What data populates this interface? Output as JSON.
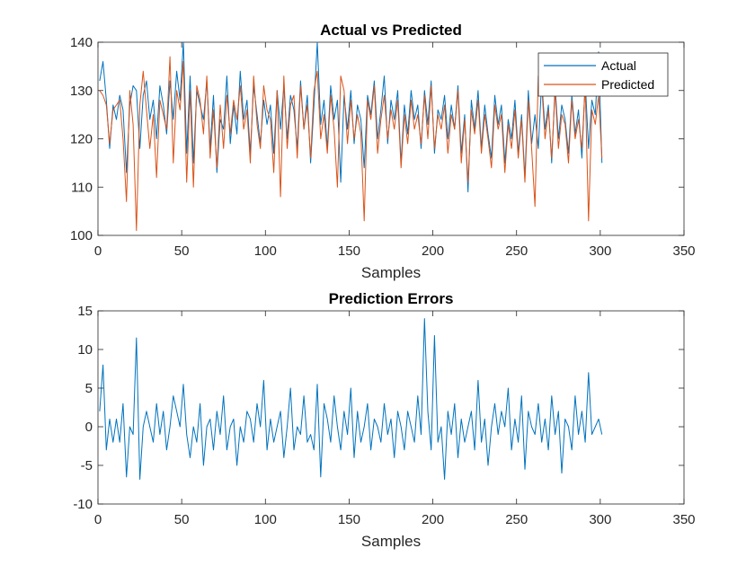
{
  "figure": {
    "background": "#ffffff",
    "axis_color": "#262626"
  },
  "chart_data": [
    {
      "type": "line",
      "title": "Actual vs Predicted",
      "xlabel": "Samples",
      "ylabel": "",
      "xlim": [
        0,
        350
      ],
      "ylim": [
        100,
        140
      ],
      "xticks": [
        0,
        50,
        100,
        150,
        200,
        250,
        300,
        350
      ],
      "yticks": [
        100,
        110,
        120,
        130,
        140
      ],
      "grid": false,
      "legend": "top-right",
      "series": [
        {
          "name": "Actual",
          "color": "#0072BD",
          "x": [
            1,
            3,
            5,
            7,
            9,
            11,
            13,
            15,
            17,
            19,
            21,
            23,
            25,
            27,
            29,
            31,
            33,
            35,
            37,
            39,
            41,
            43,
            45,
            47,
            49,
            51,
            53,
            55,
            57,
            59,
            61,
            63,
            65,
            67,
            69,
            71,
            73,
            75,
            77,
            79,
            81,
            83,
            85,
            87,
            89,
            91,
            93,
            95,
            97,
            99,
            101,
            103,
            105,
            107,
            109,
            111,
            113,
            115,
            117,
            119,
            121,
            123,
            125,
            127,
            129,
            131,
            133,
            135,
            137,
            139,
            141,
            143,
            145,
            147,
            149,
            151,
            153,
            155,
            157,
            159,
            161,
            163,
            165,
            167,
            169,
            171,
            173,
            175,
            177,
            179,
            181,
            183,
            185,
            187,
            189,
            191,
            193,
            195,
            197,
            199,
            201,
            203,
            205,
            207,
            209,
            211,
            213,
            215,
            217,
            219,
            221,
            223,
            225,
            227,
            229,
            231,
            233,
            235,
            237,
            239,
            241,
            243,
            245,
            247,
            249,
            251,
            253,
            255,
            257,
            259,
            261,
            263,
            265,
            267,
            269,
            271,
            273,
            275,
            277,
            279,
            281,
            283,
            285,
            287,
            289,
            291,
            293,
            295,
            297,
            299,
            301
          ],
          "values": [
            132,
            136,
            128,
            118,
            127,
            124,
            129,
            126,
            113,
            127,
            131,
            130,
            118,
            129,
            132,
            124,
            128,
            120,
            131,
            127,
            121,
            132,
            124,
            134,
            128,
            140,
            117,
            133,
            115,
            130,
            127,
            124,
            132,
            118,
            129,
            113,
            124,
            122,
            133,
            119,
            127,
            121,
            134,
            124,
            128,
            117,
            131,
            125,
            119,
            128,
            123,
            127,
            117,
            130,
            122,
            131,
            120,
            129,
            126,
            118,
            132,
            122,
            129,
            115,
            127,
            140,
            123,
            128,
            118,
            131,
            124,
            128,
            111,
            129,
            122,
            130,
            119,
            127,
            124,
            114,
            129,
            125,
            132,
            120,
            126,
            133,
            119,
            128,
            124,
            130,
            115,
            127,
            121,
            130,
            124,
            127,
            118,
            130,
            123,
            132,
            117,
            126,
            124,
            129,
            120,
            127,
            122,
            131,
            117,
            125,
            109,
            128,
            122,
            130,
            118,
            127,
            121,
            116,
            129,
            123,
            127,
            115,
            124,
            120,
            128,
            117,
            125,
            112,
            130,
            119,
            125,
            118,
            132,
            122,
            127,
            115,
            131,
            120,
            127,
            124,
            117,
            129,
            121,
            126,
            116,
            132,
            118,
            128,
            125,
            138,
            115
          ]
        },
        {
          "name": "Predicted",
          "color": "#D95319",
          "x": [
            1,
            3,
            5,
            7,
            9,
            11,
            13,
            15,
            17,
            19,
            21,
            23,
            25,
            27,
            29,
            31,
            33,
            35,
            37,
            39,
            41,
            43,
            45,
            47,
            49,
            51,
            53,
            55,
            57,
            59,
            61,
            63,
            65,
            67,
            69,
            71,
            73,
            75,
            77,
            79,
            81,
            83,
            85,
            87,
            89,
            91,
            93,
            95,
            97,
            99,
            101,
            103,
            105,
            107,
            109,
            111,
            113,
            115,
            117,
            119,
            121,
            123,
            125,
            127,
            129,
            131,
            133,
            135,
            137,
            139,
            141,
            143,
            145,
            147,
            149,
            151,
            153,
            155,
            157,
            159,
            161,
            163,
            165,
            167,
            169,
            171,
            173,
            175,
            177,
            179,
            181,
            183,
            185,
            187,
            189,
            191,
            193,
            195,
            197,
            199,
            201,
            203,
            205,
            207,
            209,
            211,
            213,
            215,
            217,
            219,
            221,
            223,
            225,
            227,
            229,
            231,
            233,
            235,
            237,
            239,
            241,
            243,
            245,
            247,
            249,
            251,
            253,
            255,
            257,
            259,
            261,
            263,
            265,
            267,
            269,
            271,
            273,
            275,
            277,
            279,
            281,
            283,
            285,
            287,
            289,
            291,
            293,
            295,
            297,
            299,
            301
          ],
          "values": [
            130,
            129,
            127,
            119,
            126,
            127,
            128,
            120,
            107,
            130,
            123,
            101,
            127,
            134,
            126,
            118,
            125,
            112,
            128,
            125,
            122,
            137,
            115,
            130,
            126,
            136,
            111,
            130,
            110,
            131,
            128,
            121,
            133,
            116,
            126,
            114,
            127,
            118,
            129,
            121,
            128,
            124,
            131,
            122,
            126,
            115,
            133,
            123,
            118,
            131,
            126,
            124,
            113,
            130,
            108,
            133,
            118,
            127,
            129,
            116,
            131,
            122,
            127,
            116,
            130,
            134,
            120,
            125,
            117,
            129,
            122,
            110,
            133,
            130,
            119,
            128,
            120,
            125,
            121,
            103,
            128,
            124,
            131,
            117,
            124,
            129,
            120,
            126,
            122,
            128,
            114,
            125,
            119,
            128,
            122,
            125,
            119,
            129,
            120,
            131,
            118,
            125,
            122,
            127,
            117,
            125,
            122,
            130,
            115,
            124,
            111,
            126,
            121,
            128,
            117,
            125,
            120,
            114,
            127,
            122,
            125,
            113,
            123,
            118,
            126,
            116,
            124,
            111,
            128,
            118,
            106,
            133,
            131,
            120,
            126,
            116,
            130,
            118,
            125,
            123,
            115,
            128,
            120,
            124,
            118,
            131,
            103,
            126,
            123,
            129,
            116
          ]
        }
      ]
    },
    {
      "type": "line",
      "title": "Prediction Errors",
      "xlabel": "Samples",
      "ylabel": "",
      "xlim": [
        0,
        350
      ],
      "ylim": [
        -10,
        15
      ],
      "xticks": [
        0,
        50,
        100,
        150,
        200,
        250,
        300,
        350
      ],
      "yticks": [
        -10,
        -5,
        0,
        5,
        10,
        15
      ],
      "grid": false,
      "series": [
        {
          "color": "#0072BD",
          "x": [
            1,
            3,
            5,
            7,
            9,
            11,
            13,
            15,
            17,
            19,
            21,
            23,
            25,
            27,
            29,
            31,
            33,
            35,
            37,
            39,
            41,
            43,
            45,
            47,
            49,
            51,
            53,
            55,
            57,
            59,
            61,
            63,
            65,
            67,
            69,
            71,
            73,
            75,
            77,
            79,
            81,
            83,
            85,
            87,
            89,
            91,
            93,
            95,
            97,
            99,
            101,
            103,
            105,
            107,
            109,
            111,
            113,
            115,
            117,
            119,
            121,
            123,
            125,
            127,
            129,
            131,
            133,
            135,
            137,
            139,
            141,
            143,
            145,
            147,
            149,
            151,
            153,
            155,
            157,
            159,
            161,
            163,
            165,
            167,
            169,
            171,
            173,
            175,
            177,
            179,
            181,
            183,
            185,
            187,
            189,
            191,
            193,
            195,
            197,
            199,
            201,
            203,
            205,
            207,
            209,
            211,
            213,
            215,
            217,
            219,
            221,
            223,
            225,
            227,
            229,
            231,
            233,
            235,
            237,
            239,
            241,
            243,
            245,
            247,
            249,
            251,
            253,
            255,
            257,
            259,
            261,
            263,
            265,
            267,
            269,
            271,
            273,
            275,
            277,
            279,
            281,
            283,
            285,
            287,
            289,
            291,
            293,
            295,
            297,
            299,
            301
          ],
          "values": [
            2,
            8,
            -3,
            1,
            -2,
            1,
            -2,
            3,
            -6.5,
            0,
            -1,
            11.5,
            -6.8,
            0,
            2,
            0,
            -2,
            3,
            -1,
            2,
            -3,
            0,
            4,
            2,
            0,
            5.5,
            -1,
            -4,
            0,
            -2,
            3,
            -5,
            0,
            1,
            -3,
            2,
            -1,
            4,
            -3,
            0,
            1,
            -5,
            0,
            -2,
            2,
            1,
            -2,
            3,
            0,
            6,
            -3,
            1,
            -2,
            0,
            2,
            -4,
            0,
            5,
            -3,
            0,
            -1,
            4,
            -2,
            -1,
            -3,
            5.5,
            -6.5,
            3,
            1,
            -2,
            4,
            0,
            -3,
            2,
            -1,
            5,
            -4,
            2,
            -2,
            0,
            3,
            -3,
            1,
            0,
            -2,
            3,
            -1,
            1,
            -4,
            2,
            0,
            -3,
            2,
            0,
            -2,
            4,
            -1,
            14,
            2,
            -3,
            11.8,
            -2,
            0,
            -6.8,
            2,
            -1,
            3,
            -4,
            1,
            -2,
            0,
            2,
            -3,
            6,
            -2,
            1,
            -5,
            0,
            3,
            -1,
            2,
            0,
            5,
            -3,
            1,
            -2,
            4,
            -5.5,
            2,
            0,
            -1,
            3,
            -2,
            1,
            -3,
            4,
            -1,
            2,
            -6,
            1,
            0,
            -3,
            4,
            -1,
            2,
            -2,
            7,
            -1,
            0,
            1,
            -1
          ]
        }
      ]
    }
  ]
}
